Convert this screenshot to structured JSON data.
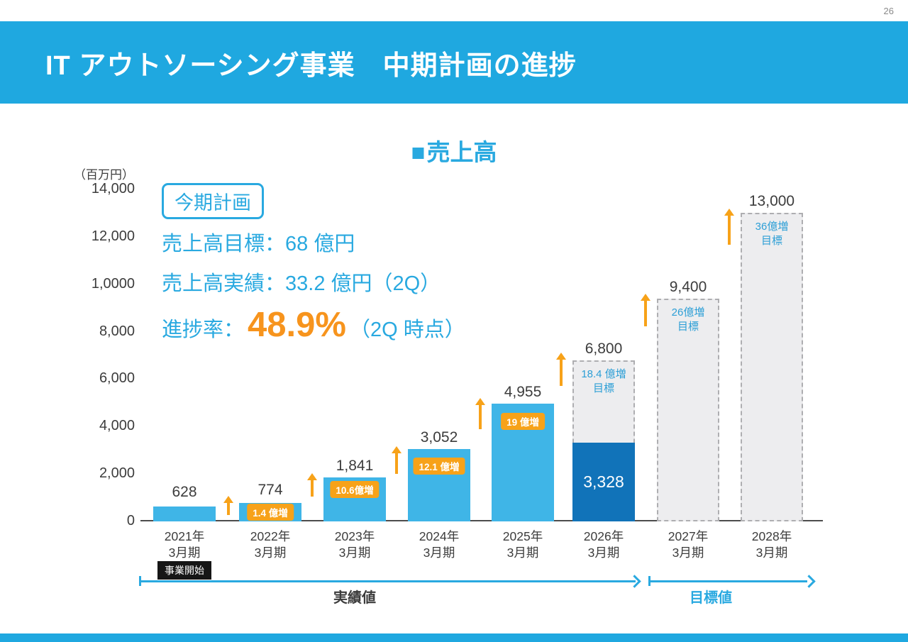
{
  "page": {
    "number": "26"
  },
  "header": {
    "title": "IT アウトソーシング事業　中期計画の進捗"
  },
  "legend": {
    "marker": "■",
    "label": "売上高"
  },
  "plan_box": {
    "badge": "今期計画",
    "target_line": "売上高目標：68 億円",
    "actual_line": "売上高実績：33.2 億円（2Q）",
    "progress_prefix": "進捗率：",
    "progress_value": "48.9%",
    "progress_suffix": "（2Q 時点）"
  },
  "chart_data": {
    "type": "bar",
    "series_name": "売上高",
    "unit_label": "（百万円）",
    "ylim": [
      0,
      14000
    ],
    "ytick_labels": [
      "14,000",
      "12,000",
      "1,0000",
      "8,000",
      "6,000",
      "4,000",
      "2,000",
      "0"
    ],
    "grid": false,
    "legend_position": "top-center",
    "bars": [
      {
        "year": "2021年",
        "period": "3月期",
        "value": 628,
        "value_label": "628",
        "kind": "actual"
      },
      {
        "year": "2022年",
        "period": "3月期",
        "value": 774,
        "value_label": "774",
        "kind": "actual",
        "increase_badge": "1.4 億増"
      },
      {
        "year": "2023年",
        "period": "3月期",
        "value": 1841,
        "value_label": "1,841",
        "kind": "actual",
        "increase_badge": "10.6億増"
      },
      {
        "year": "2024年",
        "period": "3月期",
        "value": 3052,
        "value_label": "3,052",
        "kind": "actual",
        "increase_badge": "12.1 億増"
      },
      {
        "year": "2025年",
        "period": "3月期",
        "value": 4955,
        "value_label": "4,955",
        "kind": "actual",
        "increase_badge": "19 億増"
      },
      {
        "year": "2026年",
        "period": "3月期",
        "value": 6800,
        "value_label": "6,800",
        "kind": "target",
        "actual_value": 3328,
        "actual_value_label": "3,328",
        "target_note_line1": "18.4 億増",
        "target_note_line2": "目標"
      },
      {
        "year": "2027年",
        "period": "3月期",
        "value": 9400,
        "value_label": "9,400",
        "kind": "target",
        "target_note_line1": "26億増",
        "target_note_line2": "目標"
      },
      {
        "year": "2028年",
        "period": "3月期",
        "value": 13000,
        "value_label": "13,000",
        "kind": "target",
        "target_note_line1": "36億増",
        "target_note_line2": "目標"
      }
    ],
    "start_annotation": "事業開始",
    "actual_span_label": "実績値",
    "target_span_label": "目標値"
  },
  "colors": {
    "header_blue": "#1FA8E0",
    "bar_blue": "#3FB5E7",
    "bar_dark_blue": "#1173B9",
    "accent_orange": "#F7A219",
    "progress_orange": "#F7941D",
    "text_blue": "#29A9E0",
    "target_box_fill": "#EDEDEF",
    "target_box_border": "#AEAEB1",
    "text_dark": "#3C3C3C"
  }
}
